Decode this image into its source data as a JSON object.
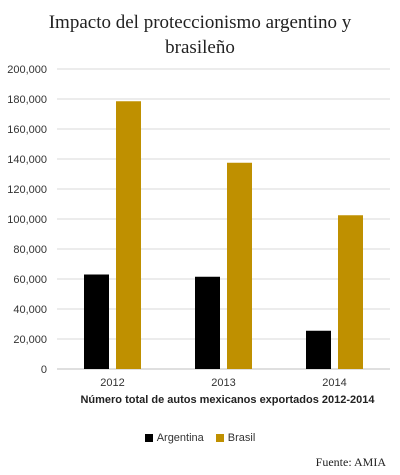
{
  "title_line1": "Impacto del proteccionismo argentino y",
  "title_line2": "brasileño",
  "source": "Fuente: AMIA",
  "chart_data": {
    "type": "bar",
    "title": "Impacto del proteccionismo argentino y brasileño",
    "xlabel": "Número total de autos mexicanos exportados 2012-2014",
    "ylabel": "",
    "categories": [
      "2012",
      "2013",
      "2014"
    ],
    "series": [
      {
        "name": "Argentina",
        "color": "#000000",
        "values": [
          63000,
          61500,
          25500
        ]
      },
      {
        "name": "Brasil",
        "color": "#bf9000",
        "values": [
          178500,
          137500,
          102500
        ]
      }
    ],
    "ylim": [
      0,
      200000
    ],
    "yticks": [
      "0",
      "20,000",
      "40,000",
      "60,000",
      "80,000",
      "100,000",
      "120,000",
      "140,000",
      "160,000",
      "180,000",
      "200,000"
    ],
    "grid": true,
    "legend": "bottom"
  }
}
